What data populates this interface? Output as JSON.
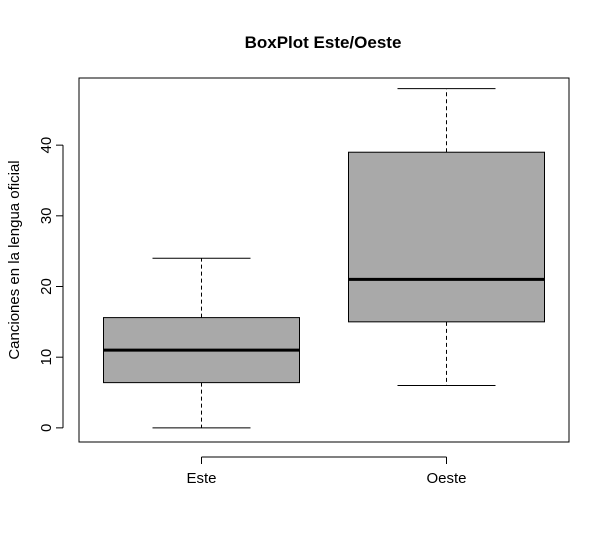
{
  "chart_data": {
    "type": "boxplot",
    "title": "BoxPlot Este/Oeste",
    "xlabel": "",
    "ylabel": "Canciones en la lengua oficial",
    "ylim": [
      -2,
      49.5
    ],
    "yticks": [
      0,
      10,
      20,
      30,
      40
    ],
    "grid": false,
    "categories": [
      "Este",
      "Oeste"
    ],
    "boxes": [
      {
        "category": "Este",
        "min": 0,
        "q1": 6.4,
        "median": 11,
        "q3": 15.6,
        "max": 24
      },
      {
        "category": "Oeste",
        "min": 6,
        "q1": 15,
        "median": 21,
        "q3": 39,
        "max": 48
      }
    ],
    "colors": {
      "box_fill": "#a9a9a9",
      "stroke": "#000000",
      "background": "#ffffff"
    }
  }
}
